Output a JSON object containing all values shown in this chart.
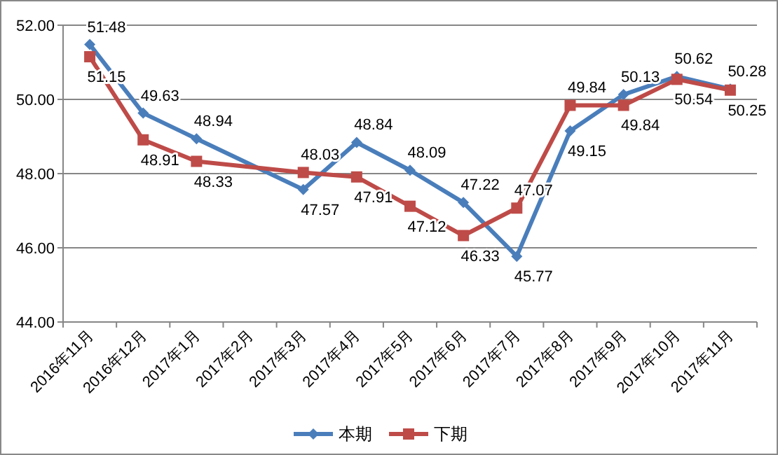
{
  "chart_data": {
    "type": "line",
    "categories": [
      "2016年11月",
      "2016年12月",
      "2017年1月",
      "2017年2月",
      "2017年3月",
      "2017年4月",
      "2017年5月",
      "2017年6月",
      "2017年7月",
      "2017年8月",
      "2017年9月",
      "2017年10月",
      "2017年11月"
    ],
    "series": [
      {
        "name": "本期",
        "color": "#4a7ebb",
        "marker": "diamond",
        "values": [
          51.48,
          49.63,
          48.94,
          null,
          47.57,
          48.84,
          48.09,
          47.22,
          45.77,
          49.15,
          50.13,
          50.62,
          50.28
        ]
      },
      {
        "name": "下期",
        "color": "#be4b48",
        "marker": "square",
        "values": [
          51.15,
          48.91,
          48.33,
          null,
          48.03,
          47.91,
          47.12,
          46.33,
          47.07,
          49.84,
          49.84,
          50.54,
          50.25
        ]
      }
    ],
    "ylim": [
      44,
      52
    ],
    "yticks": [
      {
        "value": 44,
        "label": "44.00"
      },
      {
        "value": 46,
        "label": "46.00"
      },
      {
        "value": 48,
        "label": "48.00"
      },
      {
        "value": 50,
        "label": "50.00"
      },
      {
        "value": 52,
        "label": "52.00"
      }
    ],
    "grid": "y",
    "legend": "bottom",
    "data_labels": true
  }
}
